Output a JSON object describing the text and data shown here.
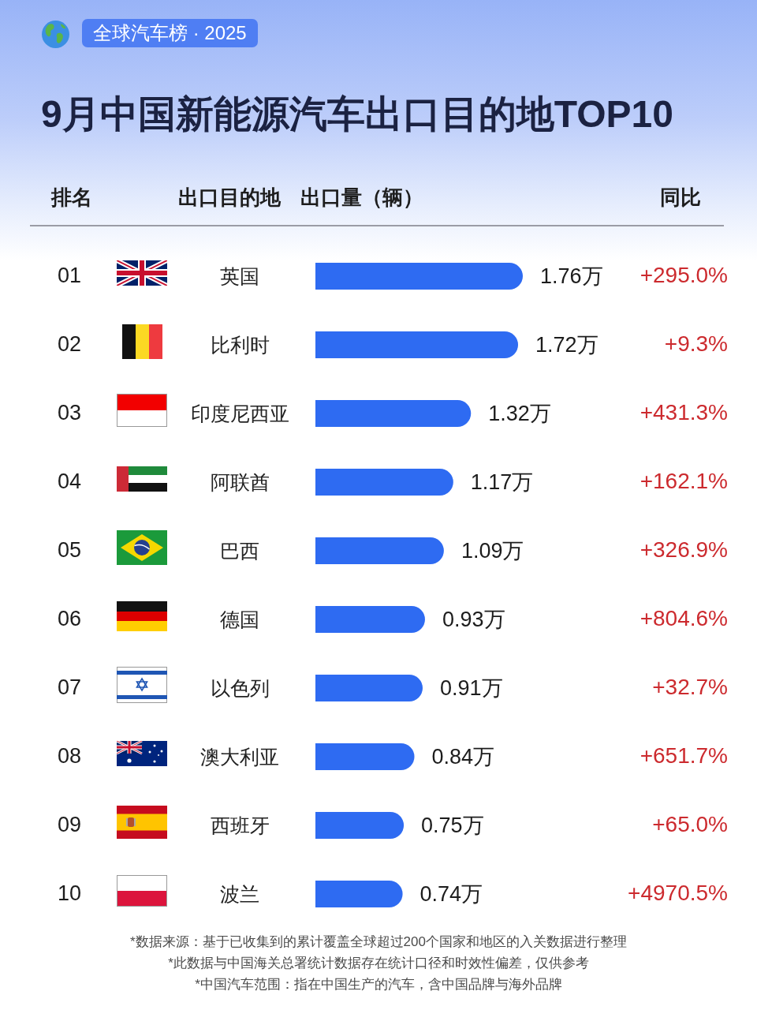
{
  "chart_data": {
    "type": "bar",
    "orientation": "horizontal",
    "tick_labels": "y",
    "title": "9月中国新能源汽车出口目的地TOP10",
    "subtitle": "全球汽车榜 · 2025",
    "ylabel": "出口目的地",
    "xlabel": "出口量（辆）",
    "categories": [
      "英国",
      "比利时",
      "印度尼西亚",
      "阿联酋",
      "巴西",
      "德国",
      "以色列",
      "澳大利亚",
      "西班牙",
      "波兰"
    ],
    "values": [
      1.76,
      1.72,
      1.32,
      1.17,
      1.09,
      0.93,
      0.91,
      0.84,
      0.75,
      0.74
    ],
    "value_labels": [
      "1.76万",
      "1.72万",
      "1.32万",
      "1.17万",
      "1.09万",
      "0.93万",
      "0.91万",
      "0.84万",
      "0.75万",
      "0.74万"
    ],
    "color": "#2e6bf2",
    "annotations": [
      "排名",
      "01",
      "02",
      "03",
      "04",
      "05",
      "06",
      "07",
      "08",
      "09",
      "10",
      "同比",
      "+295.0%",
      "+9.3%",
      "+431.3%",
      "+162.1%",
      "+326.9%",
      "+804.6%",
      "+32.7%",
      "+651.7%",
      "+65.0%",
      "+4970.5%",
      "*数据来源：基于已收集到的累计覆盖全球超过200个国家和地区的入关数据进行整理",
      "*此数据与中国海关总署统计数据存在统计口径和时效性偏差，仅供参考",
      "*中国汽车范围：指在中国生产的汽车，含中国品牌与海外品牌"
    ]
  }
}
